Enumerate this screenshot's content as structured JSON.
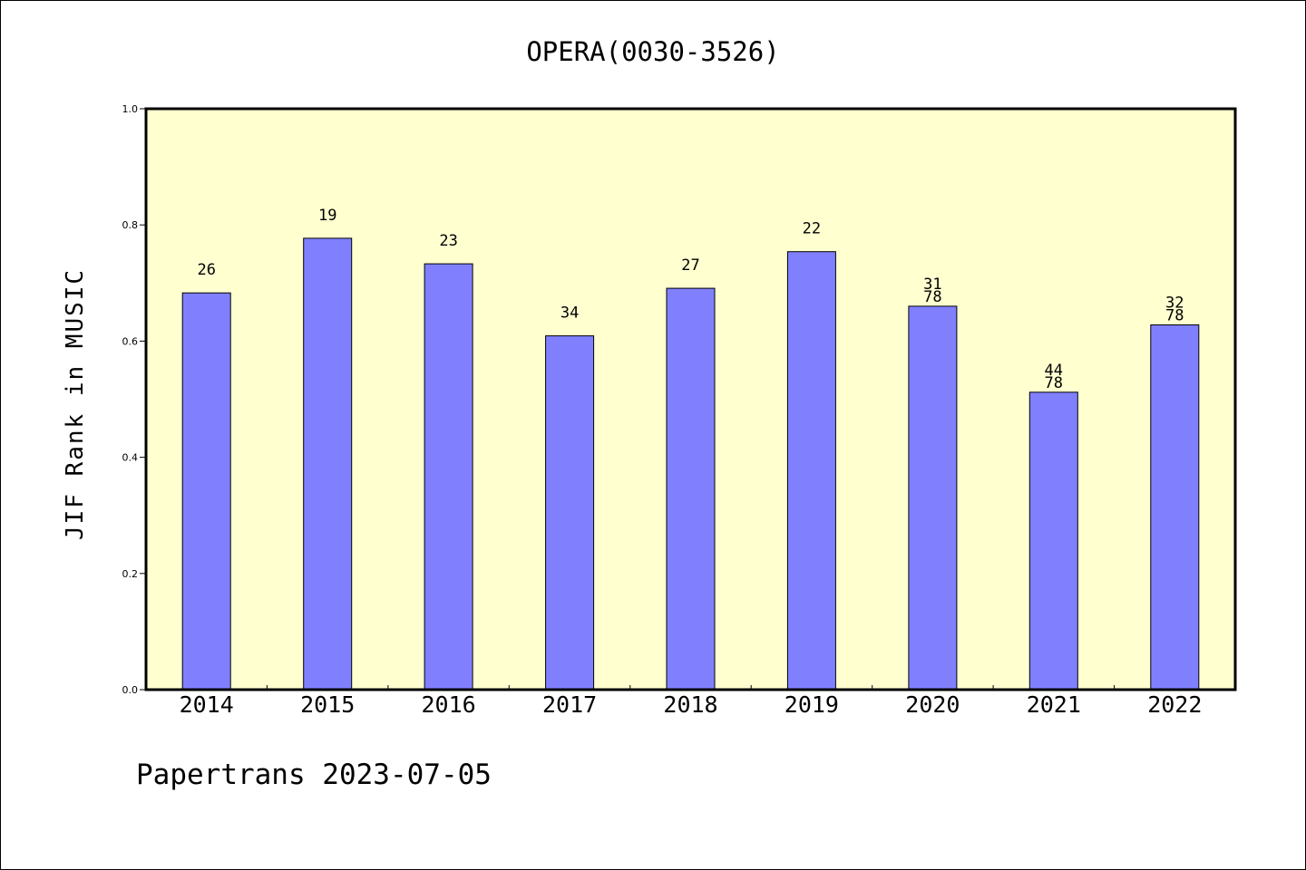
{
  "chart_data": {
    "type": "bar",
    "title": "OPERA(0030-3526)",
    "ylabel": "JIF Rank in MUSIC",
    "xlabel": "",
    "ylim": [
      0,
      1.0
    ],
    "yticks": [
      "0.0",
      "0.2",
      "0.4",
      "0.6",
      "0.8",
      "1.0"
    ],
    "categories": [
      "2014",
      "2015",
      "2016",
      "2017",
      "2018",
      "2019",
      "2020",
      "2021",
      "2022"
    ],
    "values": [
      0.683,
      0.777,
      0.733,
      0.609,
      0.691,
      0.754,
      0.66,
      0.512,
      0.628
    ],
    "labels": [
      [
        "26"
      ],
      [
        "19"
      ],
      [
        "23"
      ],
      [
        "34"
      ],
      [
        "27"
      ],
      [
        "22"
      ],
      [
        "31",
        "78"
      ],
      [
        "44",
        "78"
      ],
      [
        "32",
        "78"
      ]
    ],
    "grid": false,
    "legend": "none",
    "colors": {
      "plot_background": "#ffffd0",
      "bar_fill": "#8080ff",
      "bar_stroke": "#000000"
    }
  },
  "footer": {
    "text": "Papertrans 2023-07-05"
  }
}
